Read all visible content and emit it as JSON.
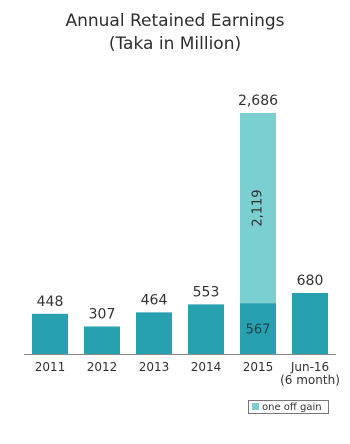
{
  "chart_data": {
    "type": "bar",
    "title": "Annual Retained Earnings",
    "subtitle": "(Taka in Million)",
    "categories": [
      "2011",
      "2012",
      "2013",
      "2014",
      "2015",
      "Jun-16"
    ],
    "category_sublabels": [
      "",
      "",
      "",
      "",
      "",
      "(6 month)"
    ],
    "series": [
      {
        "values": [
          448,
          307,
          464,
          553,
          567,
          680
        ],
        "data_labels": [
          "448",
          "307",
          "464",
          "553",
          "567",
          "680"
        ],
        "color": "#27a0b0"
      },
      {
        "name": "one off gain",
        "values": [
          0,
          0,
          0,
          0,
          2119,
          0
        ],
        "data_labels": [
          "",
          "",
          "",
          "",
          "2,119",
          ""
        ],
        "color": "#7ccfd1"
      }
    ],
    "totals": [
      "",
      "",
      "",
      "",
      "2,686",
      ""
    ],
    "stacked": true,
    "ylim": [
      0,
      2686
    ],
    "xlabel": "",
    "ylabel": "",
    "grid": false,
    "legend_position": "bottom-right"
  }
}
